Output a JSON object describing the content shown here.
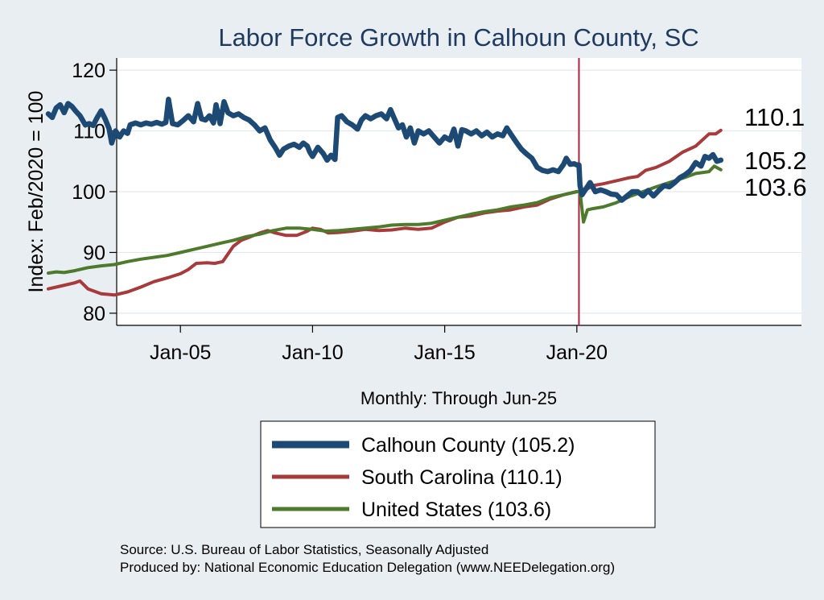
{
  "chart_data": {
    "type": "line",
    "title": "Labor Force Growth in Calhoun  County, SC",
    "ylabel": "Index: Feb/2020 = 100",
    "xlabel": "Monthly: Through Jun-25",
    "ylim": [
      78,
      122
    ],
    "xlim": [
      2000.0,
      2028.5
    ],
    "yticks": [
      80,
      90,
      100,
      110,
      120
    ],
    "xticks": [
      {
        "value": 2005.0,
        "label": "Jan-05"
      },
      {
        "value": 2010.0,
        "label": "Jan-10"
      },
      {
        "value": 2015.0,
        "label": "Jan-15"
      },
      {
        "value": 2020.0,
        "label": "Jan-20"
      }
    ],
    "reference_line": {
      "x": 2020.08,
      "color": "#b22040"
    },
    "series": [
      {
        "name": "Calhoun  County",
        "legend": "Calhoun  County (105.2)",
        "end_label": "105.2",
        "color": "#1c4a75",
        "width": 6.5,
        "points": [
          [
            2000.0,
            112.8
          ],
          [
            2000.15,
            112.2
          ],
          [
            2000.3,
            113.8
          ],
          [
            2000.45,
            114.3
          ],
          [
            2000.6,
            113.0
          ],
          [
            2000.75,
            114.5
          ],
          [
            2000.9,
            114.0
          ],
          [
            2001.05,
            113.2
          ],
          [
            2001.2,
            112.5
          ],
          [
            2001.4,
            111.0
          ],
          [
            2001.55,
            111.2
          ],
          [
            2001.7,
            110.9
          ],
          [
            2001.85,
            112.2
          ],
          [
            2002.0,
            113.3
          ],
          [
            2002.15,
            112.0
          ],
          [
            2002.3,
            110.4
          ],
          [
            2002.4,
            108.0
          ],
          [
            2002.55,
            110.0
          ],
          [
            2002.7,
            109.0
          ],
          [
            2002.85,
            110.0
          ],
          [
            2003.0,
            109.6
          ],
          [
            2003.1,
            111.0
          ],
          [
            2003.3,
            111.3
          ],
          [
            2003.5,
            111.0
          ],
          [
            2003.7,
            111.3
          ],
          [
            2003.9,
            111.1
          ],
          [
            2004.1,
            111.4
          ],
          [
            2004.3,
            111.1
          ],
          [
            2004.45,
            111.4
          ],
          [
            2004.55,
            115.2
          ],
          [
            2004.7,
            111.2
          ],
          [
            2004.9,
            111.0
          ],
          [
            2005.1,
            111.7
          ],
          [
            2005.3,
            112.5
          ],
          [
            2005.5,
            111.5
          ],
          [
            2005.65,
            114.5
          ],
          [
            2005.8,
            112.0
          ],
          [
            2005.95,
            111.8
          ],
          [
            2006.1,
            112.5
          ],
          [
            2006.25,
            111.3
          ],
          [
            2006.35,
            114.3
          ],
          [
            2006.5,
            111.2
          ],
          [
            2006.65,
            114.8
          ],
          [
            2006.8,
            113.0
          ],
          [
            2007.0,
            112.5
          ],
          [
            2007.2,
            112.8
          ],
          [
            2007.4,
            112.2
          ],
          [
            2007.6,
            111.8
          ],
          [
            2007.8,
            111.0
          ],
          [
            2008.0,
            110.0
          ],
          [
            2008.2,
            110.5
          ],
          [
            2008.4,
            108.5
          ],
          [
            2008.6,
            107.2
          ],
          [
            2008.75,
            106.0
          ],
          [
            2008.9,
            107.0
          ],
          [
            2009.1,
            107.5
          ],
          [
            2009.3,
            107.8
          ],
          [
            2009.5,
            107.3
          ],
          [
            2009.65,
            108.0
          ],
          [
            2009.8,
            107.5
          ],
          [
            2009.9,
            106.5
          ],
          [
            2010.0,
            105.8
          ],
          [
            2010.2,
            107.3
          ],
          [
            2010.4,
            106.3
          ],
          [
            2010.55,
            105.2
          ],
          [
            2010.7,
            106.0
          ],
          [
            2010.85,
            105.3
          ],
          [
            2010.95,
            112.2
          ],
          [
            2011.1,
            112.5
          ],
          [
            2011.3,
            111.5
          ],
          [
            2011.5,
            111.0
          ],
          [
            2011.7,
            110.3
          ],
          [
            2011.85,
            111.8
          ],
          [
            2012.0,
            112.5
          ],
          [
            2012.2,
            112.0
          ],
          [
            2012.4,
            112.5
          ],
          [
            2012.6,
            112.8
          ],
          [
            2012.8,
            112.0
          ],
          [
            2012.95,
            113.5
          ],
          [
            2013.1,
            112.0
          ],
          [
            2013.25,
            110.5
          ],
          [
            2013.4,
            111.0
          ],
          [
            2013.55,
            109.0
          ],
          [
            2013.7,
            110.5
          ],
          [
            2013.85,
            108.0
          ],
          [
            2014.0,
            110.0
          ],
          [
            2014.2,
            109.5
          ],
          [
            2014.4,
            110.0
          ],
          [
            2014.6,
            109.0
          ],
          [
            2014.8,
            108.0
          ],
          [
            2015.0,
            109.0
          ],
          [
            2015.2,
            108.5
          ],
          [
            2015.35,
            110.3
          ],
          [
            2015.5,
            107.5
          ],
          [
            2015.65,
            110.2
          ],
          [
            2015.8,
            110.0
          ],
          [
            2016.0,
            109.5
          ],
          [
            2016.2,
            110.0
          ],
          [
            2016.4,
            109.2
          ],
          [
            2016.6,
            109.8
          ],
          [
            2016.8,
            109.0
          ],
          [
            2017.0,
            109.5
          ],
          [
            2017.2,
            109.2
          ],
          [
            2017.35,
            110.5
          ],
          [
            2017.5,
            109.5
          ],
          [
            2017.7,
            108.2
          ],
          [
            2017.9,
            107.0
          ],
          [
            2018.1,
            106.2
          ],
          [
            2018.3,
            105.5
          ],
          [
            2018.5,
            104.0
          ],
          [
            2018.7,
            103.5
          ],
          [
            2018.9,
            103.3
          ],
          [
            2019.1,
            103.6
          ],
          [
            2019.3,
            103.3
          ],
          [
            2019.5,
            104.5
          ],
          [
            2019.6,
            105.5
          ],
          [
            2019.75,
            104.5
          ],
          [
            2019.9,
            104.6
          ],
          [
            2020.0,
            104.4
          ],
          [
            2020.08,
            104.4
          ],
          [
            2020.12,
            101.0
          ],
          [
            2020.2,
            99.5
          ],
          [
            2020.35,
            100.5
          ],
          [
            2020.5,
            101.5
          ],
          [
            2020.7,
            100.0
          ],
          [
            2020.9,
            100.3
          ],
          [
            2021.1,
            100.0
          ],
          [
            2021.3,
            99.6
          ],
          [
            2021.5,
            99.5
          ],
          [
            2021.7,
            98.6
          ],
          [
            2021.9,
            99.3
          ],
          [
            2022.1,
            100.0
          ],
          [
            2022.3,
            100.0
          ],
          [
            2022.5,
            99.3
          ],
          [
            2022.7,
            100.2
          ],
          [
            2022.9,
            99.3
          ],
          [
            2023.1,
            100.2
          ],
          [
            2023.3,
            101.0
          ],
          [
            2023.5,
            100.8
          ],
          [
            2023.7,
            101.5
          ],
          [
            2023.9,
            102.3
          ],
          [
            2024.1,
            102.8
          ],
          [
            2024.3,
            103.5
          ],
          [
            2024.5,
            104.8
          ],
          [
            2024.7,
            104.2
          ],
          [
            2024.85,
            105.8
          ],
          [
            2025.0,
            105.5
          ],
          [
            2025.15,
            106.1
          ],
          [
            2025.3,
            105.0
          ],
          [
            2025.45,
            105.2
          ]
        ]
      },
      {
        "name": "South Carolina",
        "legend": "South Carolina (110.1)",
        "end_label": "110.1",
        "color": "#a83a3c",
        "width": 4,
        "points": [
          [
            2000.0,
            84.0
          ],
          [
            2000.5,
            84.5
          ],
          [
            2001.0,
            85.0
          ],
          [
            2001.2,
            85.3
          ],
          [
            2001.5,
            84.0
          ],
          [
            2002.0,
            83.2
          ],
          [
            2002.5,
            83.0
          ],
          [
            2003.0,
            83.5
          ],
          [
            2003.5,
            84.3
          ],
          [
            2004.0,
            85.2
          ],
          [
            2004.5,
            85.8
          ],
          [
            2005.0,
            86.5
          ],
          [
            2005.3,
            87.2
          ],
          [
            2005.6,
            88.2
          ],
          [
            2006.0,
            88.3
          ],
          [
            2006.3,
            88.2
          ],
          [
            2006.6,
            88.5
          ],
          [
            2007.0,
            91.0
          ],
          [
            2007.3,
            92.0
          ],
          [
            2007.6,
            92.5
          ],
          [
            2008.0,
            93.2
          ],
          [
            2008.3,
            93.6
          ],
          [
            2008.6,
            93.2
          ],
          [
            2009.0,
            92.8
          ],
          [
            2009.4,
            92.8
          ],
          [
            2009.8,
            93.5
          ],
          [
            2010.0,
            94.0
          ],
          [
            2010.3,
            93.8
          ],
          [
            2010.6,
            93.2
          ],
          [
            2011.0,
            93.3
          ],
          [
            2011.5,
            93.5
          ],
          [
            2012.0,
            93.8
          ],
          [
            2012.5,
            93.6
          ],
          [
            2013.0,
            93.7
          ],
          [
            2013.5,
            94.0
          ],
          [
            2014.0,
            93.8
          ],
          [
            2014.5,
            94.0
          ],
          [
            2015.0,
            95.0
          ],
          [
            2015.5,
            95.8
          ],
          [
            2016.0,
            96.0
          ],
          [
            2016.5,
            96.5
          ],
          [
            2017.0,
            96.8
          ],
          [
            2017.5,
            97.0
          ],
          [
            2018.0,
            97.5
          ],
          [
            2018.5,
            97.8
          ],
          [
            2019.0,
            98.8
          ],
          [
            2019.5,
            99.5
          ],
          [
            2020.0,
            100.0
          ],
          [
            2020.12,
            100.0
          ],
          [
            2020.3,
            100.2
          ],
          [
            2020.6,
            101.0
          ],
          [
            2021.0,
            101.3
          ],
          [
            2021.5,
            101.8
          ],
          [
            2022.0,
            102.3
          ],
          [
            2022.3,
            102.5
          ],
          [
            2022.6,
            103.5
          ],
          [
            2023.0,
            104.0
          ],
          [
            2023.5,
            105.0
          ],
          [
            2024.0,
            106.5
          ],
          [
            2024.5,
            107.5
          ],
          [
            2025.0,
            109.5
          ],
          [
            2025.25,
            109.5
          ],
          [
            2025.45,
            110.1
          ]
        ]
      },
      {
        "name": "United States",
        "legend": "United States (103.6)",
        "end_label": "103.6",
        "color": "#4e7a2c",
        "width": 4,
        "points": [
          [
            2000.0,
            86.6
          ],
          [
            2000.3,
            86.8
          ],
          [
            2000.6,
            86.7
          ],
          [
            2001.0,
            87.0
          ],
          [
            2001.5,
            87.5
          ],
          [
            2002.0,
            87.8
          ],
          [
            2002.5,
            88.0
          ],
          [
            2003.0,
            88.5
          ],
          [
            2003.5,
            88.9
          ],
          [
            2004.0,
            89.2
          ],
          [
            2004.5,
            89.5
          ],
          [
            2005.0,
            90.0
          ],
          [
            2005.5,
            90.5
          ],
          [
            2006.0,
            91.0
          ],
          [
            2006.5,
            91.5
          ],
          [
            2007.0,
            92.0
          ],
          [
            2007.5,
            92.6
          ],
          [
            2008.0,
            93.0
          ],
          [
            2008.5,
            93.6
          ],
          [
            2009.0,
            94.0
          ],
          [
            2009.5,
            94.0
          ],
          [
            2010.0,
            93.8
          ],
          [
            2010.5,
            93.5
          ],
          [
            2011.0,
            93.6
          ],
          [
            2011.5,
            93.8
          ],
          [
            2012.0,
            94.0
          ],
          [
            2012.5,
            94.2
          ],
          [
            2013.0,
            94.5
          ],
          [
            2013.5,
            94.6
          ],
          [
            2014.0,
            94.6
          ],
          [
            2014.5,
            94.8
          ],
          [
            2015.0,
            95.3
          ],
          [
            2015.5,
            95.8
          ],
          [
            2016.0,
            96.3
          ],
          [
            2016.5,
            96.7
          ],
          [
            2017.0,
            97.0
          ],
          [
            2017.5,
            97.5
          ],
          [
            2018.0,
            97.8
          ],
          [
            2018.5,
            98.2
          ],
          [
            2019.0,
            99.0
          ],
          [
            2019.5,
            99.5
          ],
          [
            2020.0,
            100.0
          ],
          [
            2020.12,
            100.0
          ],
          [
            2020.25,
            95.0
          ],
          [
            2020.4,
            97.0
          ],
          [
            2020.6,
            97.2
          ],
          [
            2021.0,
            97.5
          ],
          [
            2021.5,
            98.2
          ],
          [
            2022.0,
            99.2
          ],
          [
            2022.5,
            100.0
          ],
          [
            2023.0,
            100.8
          ],
          [
            2023.5,
            101.5
          ],
          [
            2024.0,
            102.2
          ],
          [
            2024.5,
            103.0
          ],
          [
            2025.0,
            103.3
          ],
          [
            2025.2,
            104.2
          ],
          [
            2025.45,
            103.6
          ]
        ]
      }
    ]
  },
  "source_lines": [
    "Source: U.S. Bureau of Labor Statistics, Seasonally Adjusted",
    "Produced by: National Economic Education Delegation (www.NEEDelegation.org)"
  ]
}
